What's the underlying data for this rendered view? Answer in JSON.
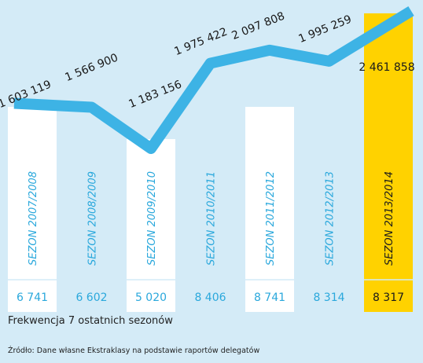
{
  "chart_data": {
    "type": "bar",
    "categories": [
      "SEZON 2007/2008",
      "SEZON 2008/2009",
      "SEZON 2009/2010",
      "SEZON 2010/2011",
      "SEZON 2011/2012",
      "SEZON 2012/2013",
      "SEZON 2013/2014"
    ],
    "series": [
      {
        "values": [
          1603119,
          1566900,
          1183156,
          1975422,
          2097808,
          1995259,
          2461858
        ],
        "labels": [
          "1 603 119",
          "1 566 900",
          "1 183 156",
          "1 975 422",
          "2 097 808",
          "1 995 259",
          "2 461 858"
        ]
      },
      {
        "values": [
          6741,
          6602,
          5020,
          8406,
          8741,
          8314,
          8317
        ],
        "labels": [
          "6 741",
          "6 602",
          "5 020",
          "8 406",
          "8 741",
          "8 314",
          "8 317"
        ]
      }
    ],
    "highlight_index": 6,
    "title": "Frekwencja 7 ostatnich sezonów",
    "source": "Źródło: Dane własne Ekstraklasy na podstawie raportów delegatów",
    "colors": {
      "background": "#d4ebf7",
      "line": "#3db3e5",
      "column": "#ffffff",
      "highlight_column": "#ffd200",
      "season_label": "#2aa8dc",
      "highlight_season_label": "#1a1a1a",
      "total_label": "#1a1a1a",
      "average_label": "#2aa8dc",
      "highlight_average_label": "#1a1a1a",
      "divider": "#d4ebf7"
    }
  }
}
